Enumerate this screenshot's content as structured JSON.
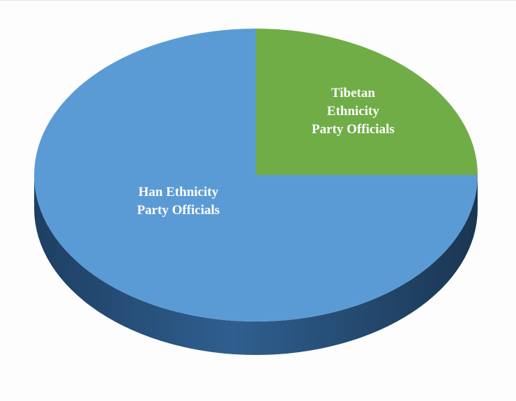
{
  "chart_data": {
    "type": "pie",
    "style": "3d",
    "title": "",
    "legend": "none",
    "slices": [
      {
        "label": "Han Ethnicity Party Officials",
        "label_lines": [
          "Han Ethnicity",
          "Party Officials"
        ],
        "value": 75,
        "color": "#5b9bd5",
        "side_color": "#2f5f8f"
      },
      {
        "label": "Tibetan Ethnicity Party Officials",
        "label_lines": [
          "Tibetan",
          "Ethnicity",
          "Party Officials"
        ],
        "value": 25,
        "color": "#70ad47",
        "side_color": "#4a7a2c"
      }
    ]
  }
}
